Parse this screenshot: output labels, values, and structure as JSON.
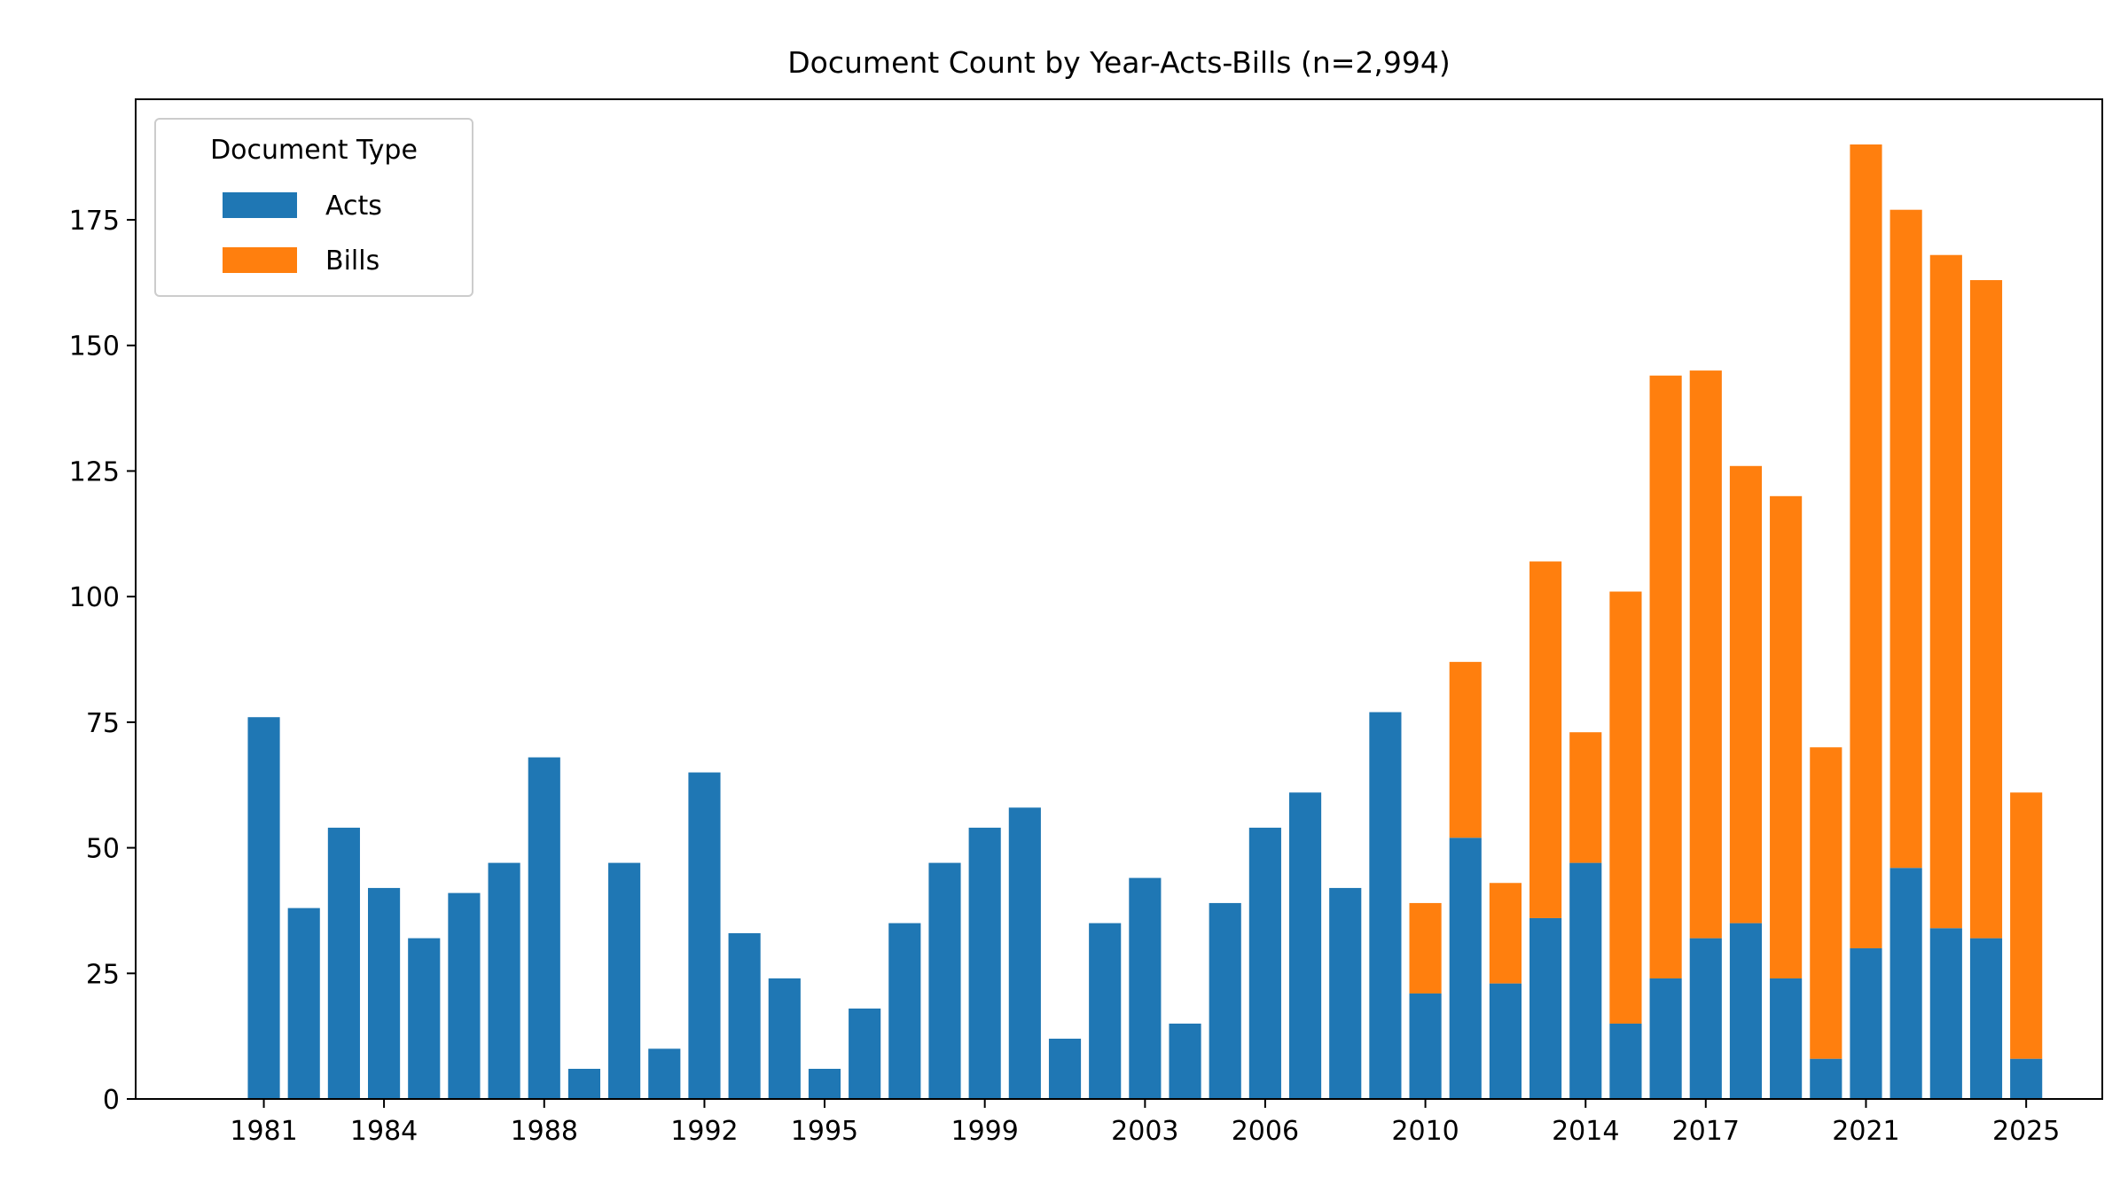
{
  "chart_data": {
    "type": "bar",
    "stacked": true,
    "title": "Document Count by Year-Acts-Bills (n=2,994)",
    "xlabel": "",
    "ylabel": "",
    "ylim": [
      0,
      199
    ],
    "xlim": [
      1977.8,
      2026.9
    ],
    "yticks": [
      0,
      25,
      50,
      75,
      100,
      125,
      150,
      175
    ],
    "xticks": [
      1981,
      1984,
      1988,
      1992,
      1995,
      1999,
      2003,
      2006,
      2010,
      2014,
      2017,
      2021,
      2025
    ],
    "legend": {
      "title": "Document Type",
      "position": "top-left"
    },
    "x": [
      1981,
      1982,
      1983,
      1984,
      1985,
      1986,
      1987,
      1988,
      1989,
      1990,
      1991,
      1992,
      1993,
      1994,
      1995,
      1996,
      1997,
      1998,
      1999,
      2000,
      2001,
      2002,
      2003,
      2004,
      2005,
      2006,
      2007,
      2008,
      2009,
      2010,
      2011,
      2012,
      2013,
      2014,
      2015,
      2016,
      2017,
      2018,
      2019,
      2020,
      2021,
      2022,
      2023,
      2024,
      2025
    ],
    "series": [
      {
        "name": "Acts",
        "color": "#1f77b4",
        "values": [
          76,
          38,
          54,
          42,
          32,
          41,
          47,
          68,
          6,
          47,
          10,
          65,
          33,
          24,
          6,
          18,
          35,
          47,
          54,
          58,
          12,
          35,
          44,
          15,
          39,
          54,
          61,
          42,
          77,
          21,
          52,
          23,
          36,
          47,
          15,
          24,
          32,
          35,
          24,
          8,
          30,
          46,
          34,
          32,
          8
        ]
      },
      {
        "name": "Bills",
        "color": "#ff7f0e",
        "values": [
          0,
          0,
          0,
          0,
          0,
          0,
          0,
          0,
          0,
          0,
          0,
          0,
          0,
          0,
          0,
          0,
          0,
          0,
          0,
          0,
          0,
          0,
          0,
          0,
          0,
          0,
          0,
          0,
          0,
          18,
          35,
          20,
          71,
          26,
          86,
          120,
          113,
          91,
          96,
          62,
          160,
          131,
          134,
          131,
          53
        ]
      }
    ]
  }
}
